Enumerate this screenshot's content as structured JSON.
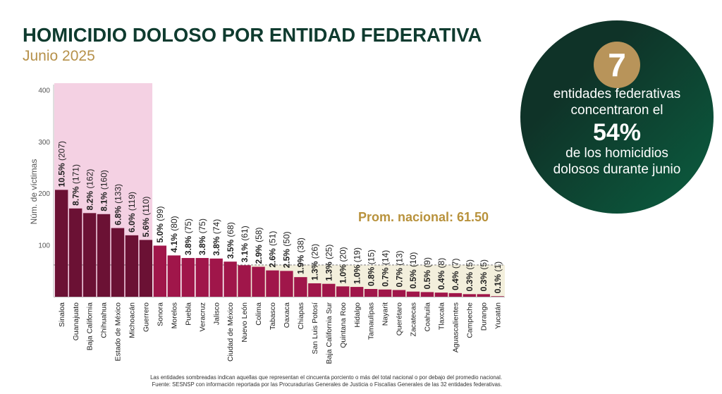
{
  "chart_data": {
    "type": "bar",
    "title": "HOMICIDIO DOLOSO POR ENTIDAD FEDERATIVA",
    "subtitle": "Junio 2025",
    "ylabel": "Núm. de víctimas",
    "ylim": [
      0,
      400
    ],
    "yticks": [
      100,
      200,
      300,
      400
    ],
    "grid": false,
    "categories": [
      "Sinaloa",
      "Guanajuato",
      "Baja California",
      "Chihuahua",
      "Estado de México",
      "Michoacán",
      "Guerrero",
      "Sonora",
      "Morelos",
      "Puebla",
      "Veracruz",
      "Jalisco",
      "Ciudad de México",
      "Nuevo León",
      "Colima",
      "Tabasco",
      "Oaxaca",
      "Chiapas",
      "San Luis Potosí",
      "Baja California Sur",
      "Quintana Roo",
      "Hidalgo",
      "Tamaulipas",
      "Nayarit",
      "Querétaro",
      "Zacatecas",
      "Coahuila",
      "Tlaxcala",
      "Aguascalientes",
      "Campeche",
      "Durango",
      "Yucatán"
    ],
    "values": [
      207,
      171,
      162,
      160,
      133,
      119,
      110,
      99,
      80,
      75,
      75,
      74,
      68,
      61,
      58,
      51,
      50,
      38,
      26,
      25,
      20,
      19,
      15,
      14,
      13,
      10,
      9,
      8,
      7,
      5,
      5,
      1
    ],
    "percent_labels": [
      "10.5%",
      "8.7%",
      "8.2%",
      "8.1%",
      "6.8%",
      "6.0%",
      "5.6%",
      "5.0%",
      "4.1%",
      "3.8%",
      "3.8%",
      "3.8%",
      "3.5%",
      "3.1%",
      "2.9%",
      "2.6%",
      "2.5%",
      "1.9%",
      "1.3%",
      "1.3%",
      "1.0%",
      "1.0%",
      "0.8%",
      "0.7%",
      "0.7%",
      "0.5%",
      "0.5%",
      "0.4%",
      "0.4%",
      "0.3%",
      "0.3%",
      "0.1%"
    ],
    "average": 61.5,
    "average_label": "Prom. nacional: 61.50",
    "colors": {
      "top_bars": "#6b1134",
      "other_bars": "#a0164a",
      "top_group_shade": "#f4d1e3",
      "below_average_shade": "#f3efdc",
      "average_line": "#6f6f6f",
      "average_label": "#b8923c",
      "axis": "#bdbdbd",
      "text": "#1e1e1e"
    }
  },
  "callout": {
    "number": "7",
    "line1": "entidades federativas",
    "line2": "concentraron el",
    "percent": "54%",
    "line3": "de los homicidios",
    "line4": "dolosos durante junio"
  },
  "footer": {
    "note": "Las entidades sombreadas indican aquellas que representan el cincuenta porciento o más del total nacional o por debajo del promedio nacional.",
    "source": "Fuente: SESNSP con información reportada por las Procuradurías Generales de Justicia o Fiscalías Generales de las 32 entidades federativas."
  },
  "colors": {
    "title": "#0f3b2f",
    "subtitle": "#b6914a",
    "circle_dark": "#0f3328",
    "circle_light": "#0b5e40",
    "badge": "#b8945a",
    "footer_text": "#333333"
  }
}
